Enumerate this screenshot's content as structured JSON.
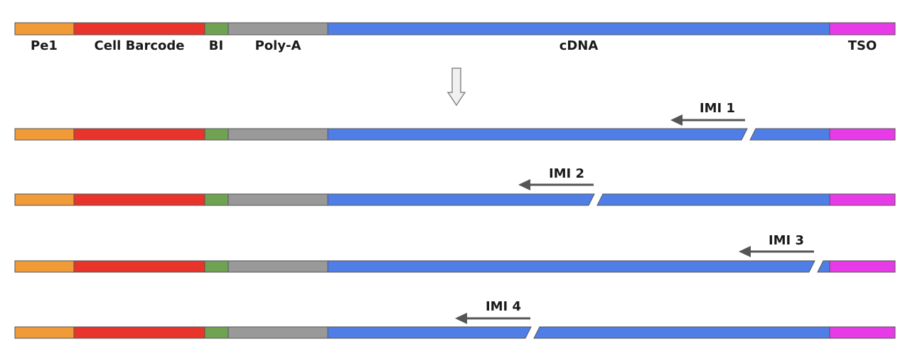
{
  "segments": [
    {
      "key": "pe1",
      "label": "Pe1",
      "color": "#f09a38"
    },
    {
      "key": "cell-barcode",
      "label": "Cell Barcode",
      "color": "#e8342a"
    },
    {
      "key": "bi",
      "label": "BI",
      "color": "#6fa352"
    },
    {
      "key": "poly-a",
      "label": "Poly-A",
      "color": "#999999"
    },
    {
      "key": "cdna",
      "label": "cDNA",
      "color": "#4f7fe6"
    },
    {
      "key": "tso",
      "label": "TSO",
      "color": "#e83be8"
    }
  ],
  "fragments": [
    {
      "label": "IMI 1"
    },
    {
      "label": "IMI 2"
    },
    {
      "label": "IMI 3"
    },
    {
      "label": "IMI 4"
    }
  ],
  "colors": {
    "outline": "#555555",
    "arrow": "#555555",
    "down_arrow_fill": "#f0f0f0",
    "down_arrow_stroke": "#888888"
  }
}
